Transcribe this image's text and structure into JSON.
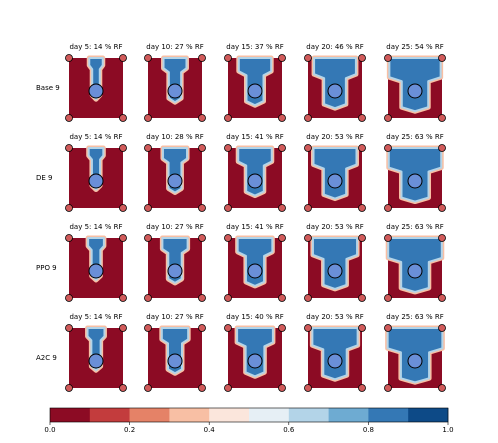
{
  "rows": [
    {
      "label": "Base 9",
      "panels": [
        "day 5: 14 % RF",
        "day 10: 27 % RF",
        "day 15: 37 % RF",
        "day 20: 46 % RF",
        "day 25: 54 % RF"
      ]
    },
    {
      "label": "DE 9",
      "panels": [
        "day 5: 14 % RF",
        "day 10: 28 % RF",
        "day 15: 41 % RF",
        "day 20: 53 % RF",
        "day 25: 63 % RF"
      ]
    },
    {
      "label": "PPO 9",
      "panels": [
        "day 5: 14 % RF",
        "day 10: 27 % RF",
        "day 15: 41 % RF",
        "day 20: 53 % RF",
        "day 25: 63 % RF"
      ]
    },
    {
      "label": "A2C 9",
      "panels": [
        "day 5: 14 % RF",
        "day 10: 27 % RF",
        "day 15: 40 % RF",
        "day 20: 53 % RF",
        "day 25: 63 % RF"
      ]
    }
  ],
  "colorbar": {
    "lim": [
      0,
      1
    ],
    "colors": [
      "#8c0b24",
      "#c33c3d",
      "#e58267",
      "#f8bfa4",
      "#fbe6dc",
      "#e6eff5",
      "#b3d4e8",
      "#6eabd2",
      "#3478b5",
      "#0d4a87"
    ],
    "ticks": [
      {
        "value": 0,
        "label": "0.0"
      },
      {
        "value": 0.2,
        "label": "0.2"
      },
      {
        "value": 0.4,
        "label": "0.4"
      },
      {
        "value": 0.6,
        "label": "0.6"
      },
      {
        "value": 0.8,
        "label": "0.8"
      },
      {
        "value": 1,
        "label": "1.0"
      }
    ]
  }
}
